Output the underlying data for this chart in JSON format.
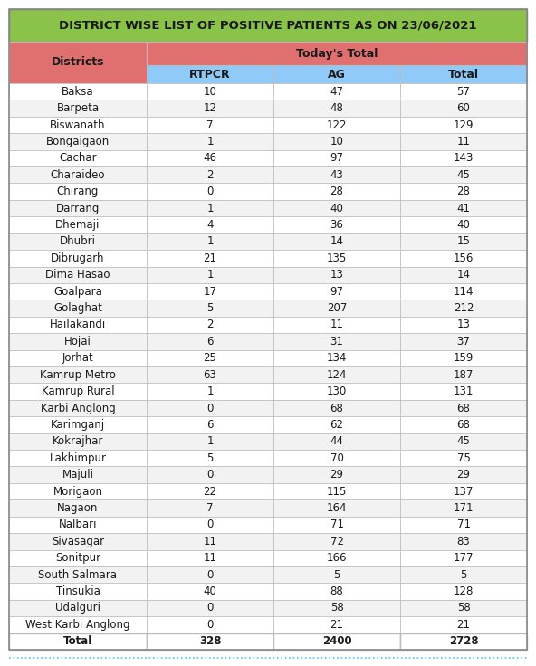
{
  "title": "DISTRICT WISE LIST OF POSITIVE PATIENTS AS ON 23/06/2021",
  "title_bg": "#8BC34A",
  "header1_bg": "#E07070",
  "header2_bg": "#90CAF9",
  "row_bg_white": "#FFFFFF",
  "row_bg_light": "#F2F2F2",
  "col_headers_level1": [
    "Districts",
    "Today's Total"
  ],
  "col_headers_level2": [
    "RTPCR",
    "AG",
    "Total"
  ],
  "districts": [
    "Baksa",
    "Barpeta",
    "Biswanath",
    "Bongaigaon",
    "Cachar",
    "Charaideo",
    "Chirang",
    "Darrang",
    "Dhemaji",
    "Dhubri",
    "Dibrugarh",
    "Dima Hasao",
    "Goalpara",
    "Golaghat",
    "Hailakandi",
    "Hojai",
    "Jorhat",
    "Kamrup Metro",
    "Kamrup Rural",
    "Karbi Anglong",
    "Karimganj",
    "Kokrajhar",
    "Lakhimpur",
    "Majuli",
    "Morigaon",
    "Nagaon",
    "Nalbari",
    "Sivasagar",
    "Sonitpur",
    "South Salmara",
    "Tinsukia",
    "Udalguri",
    "West Karbi Anglong",
    "Total"
  ],
  "rtpcr": [
    10,
    12,
    7,
    1,
    46,
    2,
    0,
    1,
    4,
    1,
    21,
    1,
    17,
    5,
    2,
    6,
    25,
    63,
    1,
    0,
    6,
    1,
    5,
    0,
    22,
    7,
    0,
    11,
    11,
    0,
    40,
    0,
    0,
    328
  ],
  "ag": [
    47,
    48,
    122,
    10,
    97,
    43,
    28,
    40,
    36,
    14,
    135,
    13,
    97,
    207,
    11,
    31,
    134,
    124,
    130,
    68,
    62,
    44,
    70,
    29,
    115,
    164,
    71,
    72,
    166,
    5,
    88,
    58,
    21,
    2400
  ],
  "total": [
    57,
    60,
    129,
    11,
    143,
    45,
    28,
    41,
    40,
    15,
    156,
    14,
    114,
    212,
    13,
    37,
    159,
    187,
    131,
    68,
    68,
    45,
    75,
    29,
    137,
    171,
    71,
    83,
    177,
    5,
    128,
    58,
    21,
    2728
  ],
  "border_color": "#AAAAAA",
  "title_font_size": 9.5,
  "header_font_size": 9,
  "cell_font_size": 8.5,
  "footer_color": "#4FC3F7",
  "edge_color": "#BBBBBB"
}
